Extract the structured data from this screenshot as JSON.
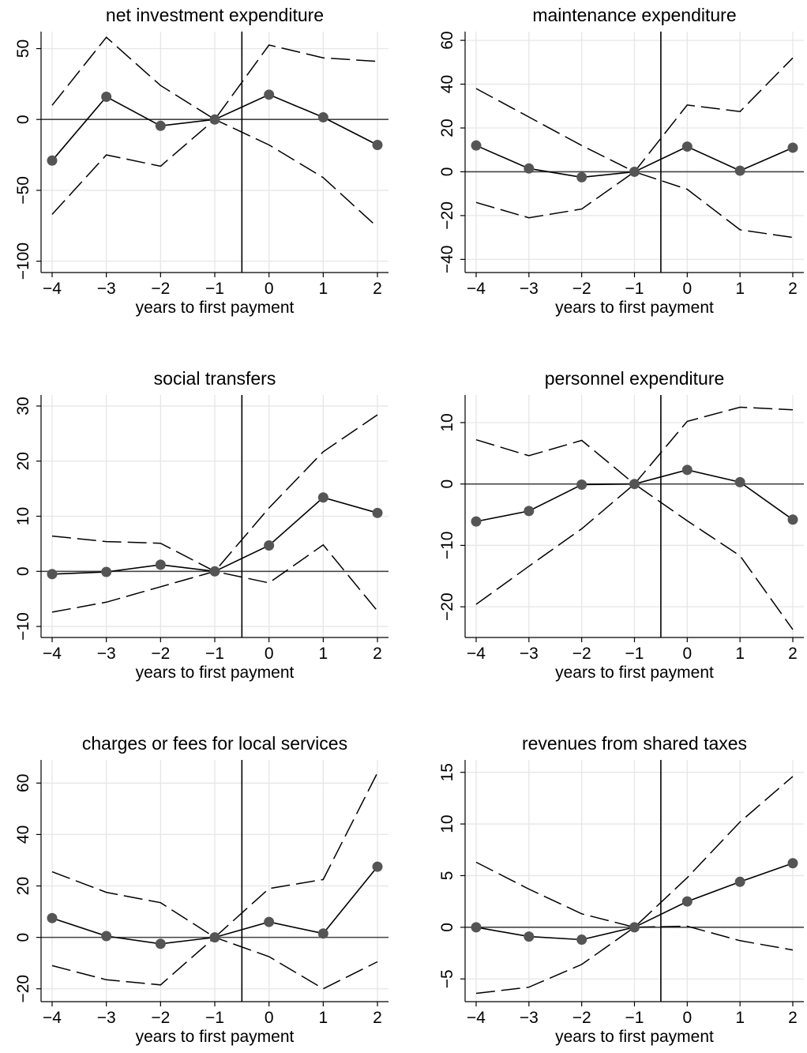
{
  "chart_data": [
    {
      "type": "line",
      "title": "net investment expenditure",
      "xlabel": "years to first payment",
      "x": [
        -4,
        -3,
        -2,
        -1,
        0,
        1,
        2
      ],
      "xticks": [
        "−4",
        "−3",
        "−2",
        "−1",
        "0",
        "1",
        "2"
      ],
      "ylim": [
        -108,
        62
      ],
      "yticks": [
        50,
        0,
        -50,
        -100
      ],
      "ytick_labels": [
        "50",
        "0",
        "−50",
        "−100"
      ],
      "event_line_x": -0.5,
      "series": [
        {
          "values": [
            -29,
            16,
            -4.5,
            0,
            17.5,
            1.5,
            -18
          ]
        },
        {
          "values": [
            10,
            58,
            24,
            0,
            52.5,
            43.5,
            41
          ]
        },
        {
          "values": [
            -67,
            -25,
            -33,
            0,
            -18,
            -41,
            -76
          ]
        }
      ]
    },
    {
      "type": "line",
      "title": "maintenance expenditure",
      "xlabel": "years to first payment",
      "x": [
        -4,
        -3,
        -2,
        -1,
        0,
        1,
        2
      ],
      "xticks": [
        "−4",
        "−3",
        "−2",
        "−1",
        "0",
        "1",
        "2"
      ],
      "ylim": [
        -46,
        64
      ],
      "yticks": [
        60,
        40,
        20,
        0,
        -20,
        -40
      ],
      "ytick_labels": [
        "60",
        "40",
        "20",
        "0",
        "−20",
        "−40"
      ],
      "event_line_x": -0.5,
      "series": [
        {
          "values": [
            12,
            1.5,
            -2.5,
            0,
            11.5,
            0.5,
            11
          ]
        },
        {
          "values": [
            38,
            25,
            12,
            0,
            30.5,
            27.5,
            52
          ]
        },
        {
          "values": [
            -14,
            -21,
            -17,
            0,
            -8,
            -26.5,
            -30
          ]
        }
      ]
    },
    {
      "type": "line",
      "title": "social transfers",
      "xlabel": "years to first payment",
      "x": [
        -4,
        -3,
        -2,
        -1,
        0,
        1,
        2
      ],
      "xticks": [
        "−4",
        "−3",
        "−2",
        "−1",
        "0",
        "1",
        "2"
      ],
      "ylim": [
        -12,
        32
      ],
      "yticks": [
        30,
        20,
        10,
        0,
        -10
      ],
      "ytick_labels": [
        "30",
        "20",
        "10",
        "0",
        "−10"
      ],
      "event_line_x": -0.5,
      "series": [
        {
          "values": [
            -0.5,
            -0.1,
            1.2,
            0,
            4.7,
            13.4,
            10.6
          ]
        },
        {
          "values": [
            6.4,
            5.4,
            5.1,
            0,
            11.5,
            21.7,
            28.4
          ]
        },
        {
          "values": [
            -7.4,
            -5.6,
            -2.8,
            0,
            -2.1,
            4.8,
            -7.2
          ]
        }
      ]
    },
    {
      "type": "line",
      "title": "personnel expenditure",
      "xlabel": "years to first payment",
      "x": [
        -4,
        -3,
        -2,
        -1,
        0,
        1,
        2
      ],
      "xticks": [
        "−4",
        "−3",
        "−2",
        "−1",
        "0",
        "1",
        "2"
      ],
      "ylim": [
        -25,
        14.5
      ],
      "yticks": [
        10,
        0,
        -10,
        -20
      ],
      "ytick_labels": [
        "10",
        "0",
        "−10",
        "−20"
      ],
      "event_line_x": -0.5,
      "series": [
        {
          "values": [
            -6.1,
            -4.4,
            -0.1,
            0,
            2.3,
            0.3,
            -5.8
          ]
        },
        {
          "values": [
            7.2,
            4.6,
            7.1,
            0,
            10.2,
            12.5,
            12.1
          ]
        },
        {
          "values": [
            -19.6,
            -13.4,
            -7.3,
            0,
            -6.0,
            -11.7,
            -23.7
          ]
        }
      ]
    },
    {
      "type": "line",
      "title": "charges or fees for local services",
      "xlabel": "years to first payment",
      "x": [
        -4,
        -3,
        -2,
        -1,
        0,
        1,
        2
      ],
      "xticks": [
        "−4",
        "−3",
        "−2",
        "−1",
        "0",
        "1",
        "2"
      ],
      "ylim": [
        -25,
        69
      ],
      "yticks": [
        60,
        40,
        20,
        0,
        -20
      ],
      "ytick_labels": [
        "60",
        "40",
        "20",
        "0",
        "−20"
      ],
      "event_line_x": -0.5,
      "series": [
        {
          "values": [
            7.5,
            0.5,
            -2.5,
            0,
            6,
            1.5,
            27.5
          ]
        },
        {
          "values": [
            25.5,
            17.5,
            13.5,
            0,
            19,
            22.5,
            64
          ]
        },
        {
          "values": [
            -11,
            -16.5,
            -18.5,
            0,
            -7.5,
            -20,
            -9.5
          ]
        }
      ]
    },
    {
      "type": "line",
      "title": "revenues from shared taxes",
      "xlabel": "years to first payment",
      "x": [
        -4,
        -3,
        -2,
        -1,
        0,
        1,
        2
      ],
      "xticks": [
        "−4",
        "−3",
        "−2",
        "−1",
        "0",
        "1",
        "2"
      ],
      "ylim": [
        -7.2,
        16.2
      ],
      "yticks": [
        15,
        10,
        5,
        0,
        -5
      ],
      "ytick_labels": [
        "15",
        "10",
        "5",
        "0",
        "−5"
      ],
      "event_line_x": -0.5,
      "series": [
        {
          "values": [
            0,
            -0.9,
            -1.2,
            0,
            2.5,
            4.4,
            6.2
          ]
        },
        {
          "values": [
            6.3,
            3.7,
            1.3,
            0,
            4.8,
            10.2,
            14.6
          ]
        },
        {
          "values": [
            -6.4,
            -5.8,
            -3.6,
            0,
            0.1,
            -1.3,
            -2.2
          ]
        }
      ]
    }
  ]
}
